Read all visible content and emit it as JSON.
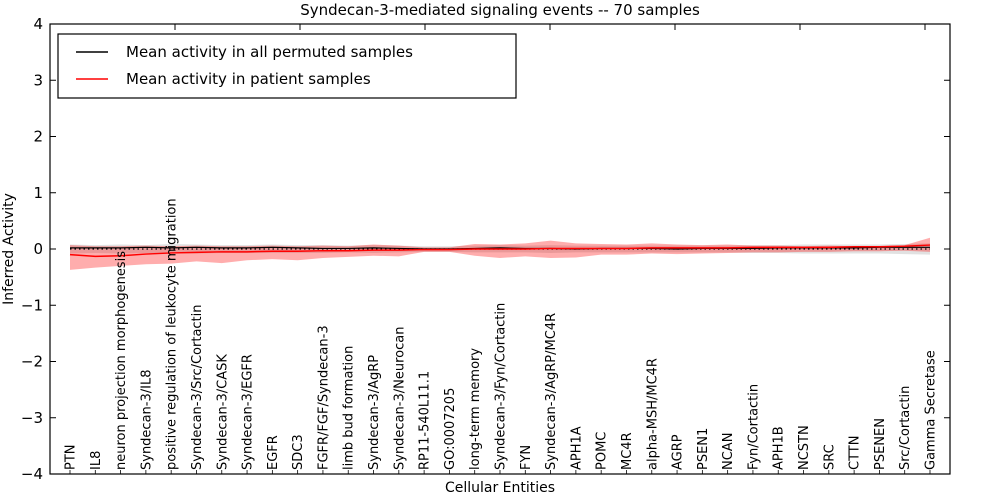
{
  "title": "Syndecan-3-mediated signaling events -- 70 samples",
  "legend": {
    "items": [
      {
        "label": "Mean activity in all permuted samples",
        "color": "#000000"
      },
      {
        "label": "Mean activity in patient samples",
        "color": "#ff0000"
      }
    ]
  },
  "axes": {
    "ylabel": "Inferred Activity",
    "xlabel": "Cellular Entities",
    "ytick_labels": [
      "4",
      "3",
      "2",
      "1",
      "0",
      "−1",
      "−2",
      "−3",
      "−4"
    ]
  },
  "chart_data": {
    "type": "line",
    "title": "Syndecan-3-mediated signaling events -- 70 samples",
    "xlabel": "Cellular Entities",
    "ylabel": "Inferred Activity",
    "ylim": [
      -4,
      4
    ],
    "yticks": [
      4,
      3,
      2,
      1,
      0,
      -1,
      -2,
      -3,
      -4
    ],
    "grid": false,
    "legend_position": "upper left",
    "zero_reference_line": {
      "y": 0,
      "style": "dotted",
      "color": "#000000"
    },
    "categories": [
      "PTN",
      "IL8",
      "neuron projection morphogenesis",
      "Syndecan-3/IL8",
      "positive regulation of leukocyte migration",
      "Syndecan-3/Src/Cortactin",
      "Syndecan-3/CASK",
      "Syndecan-3/EGFR",
      "EGFR",
      "SDC3",
      "FGFR/FGF/Syndecan-3",
      "limb bud formation",
      "Syndecan-3/AgRP",
      "Syndecan-3/Neurocan",
      "RP11-540L11.1",
      "GO:0007205",
      "long-term memory",
      "Syndecan-3/Fyn/Cortactin",
      "FYN",
      "Syndecan-3/AgRP/MC4R",
      "APH1A",
      "POMC",
      "MC4R",
      "alpha-MSH/MC4R",
      "AGRP",
      "PSEN1",
      "NCAN",
      "Fyn/Cortactin",
      "APH1B",
      "NCSTN",
      "SRC",
      "CTTN",
      "PSENEN",
      "Src/Cortactin",
      "Gamma Secretase"
    ],
    "series": [
      {
        "name": "Mean activity in all permuted samples",
        "color": "#000000",
        "values": [
          0.02,
          0.02,
          0.02,
          0.03,
          0.02,
          0.03,
          0.02,
          0.02,
          0.03,
          0.02,
          0.01,
          0.01,
          0.02,
          0.01,
          0.0,
          0.0,
          0.01,
          0.02,
          0.01,
          0.01,
          0.0,
          0.01,
          0.01,
          0.01,
          0.0,
          0.01,
          0.01,
          0.01,
          0.02,
          0.02,
          0.02,
          0.02,
          0.03,
          0.03,
          0.03
        ]
      },
      {
        "name": "Mean activity in patient samples",
        "color": "#ff0000",
        "values": [
          -0.1,
          -0.13,
          -0.12,
          -0.09,
          -0.07,
          -0.06,
          -0.05,
          -0.05,
          -0.04,
          -0.04,
          -0.03,
          -0.03,
          -0.02,
          -0.02,
          -0.01,
          -0.01,
          0.0,
          0.0,
          0.0,
          0.01,
          0.01,
          0.01,
          0.01,
          0.02,
          0.02,
          0.02,
          0.02,
          0.03,
          0.03,
          0.03,
          0.03,
          0.04,
          0.04,
          0.05,
          0.07
        ]
      }
    ],
    "bands": [
      {
        "name": "permuted-samples-std-band",
        "color": "#aaaaaa",
        "opacity": 0.35,
        "upper": [
          0.08,
          0.07,
          0.08,
          0.07,
          0.09,
          0.08,
          0.07,
          0.07,
          0.08,
          0.07,
          0.07,
          0.06,
          0.07,
          0.06,
          0.05,
          0.05,
          0.06,
          0.07,
          0.06,
          0.07,
          0.06,
          0.06,
          0.06,
          0.06,
          0.06,
          0.06,
          0.06,
          0.07,
          0.07,
          0.08,
          0.08,
          0.08,
          0.08,
          0.09,
          0.1
        ],
        "lower": [
          -0.08,
          -0.07,
          -0.08,
          -0.07,
          -0.08,
          -0.08,
          -0.07,
          -0.07,
          -0.07,
          -0.07,
          -0.07,
          -0.06,
          -0.07,
          -0.06,
          -0.05,
          -0.05,
          -0.06,
          -0.06,
          -0.06,
          -0.07,
          -0.06,
          -0.06,
          -0.06,
          -0.06,
          -0.06,
          -0.06,
          -0.06,
          -0.07,
          -0.07,
          -0.08,
          -0.08,
          -0.08,
          -0.08,
          -0.09,
          -0.1
        ]
      },
      {
        "name": "patient-samples-std-band",
        "color": "#ff0000",
        "opacity": 0.32,
        "upper": [
          0.07,
          0.05,
          0.05,
          0.06,
          0.05,
          0.06,
          0.05,
          0.05,
          0.06,
          0.05,
          0.06,
          0.05,
          0.08,
          0.06,
          0.03,
          0.03,
          0.09,
          0.08,
          0.1,
          0.15,
          0.1,
          0.09,
          0.08,
          0.1,
          0.08,
          0.07,
          0.08,
          0.06,
          0.06,
          0.05,
          0.06,
          0.05,
          0.05,
          0.07,
          0.2
        ],
        "lower": [
          -0.37,
          -0.33,
          -0.3,
          -0.27,
          -0.26,
          -0.22,
          -0.25,
          -0.2,
          -0.18,
          -0.2,
          -0.16,
          -0.14,
          -0.12,
          -0.13,
          -0.05,
          -0.05,
          -0.12,
          -0.16,
          -0.13,
          -0.16,
          -0.15,
          -0.1,
          -0.1,
          -0.08,
          -0.09,
          -0.08,
          -0.07,
          -0.06,
          -0.06,
          -0.05,
          -0.05,
          -0.04,
          -0.04,
          -0.03,
          -0.05
        ]
      }
    ]
  }
}
